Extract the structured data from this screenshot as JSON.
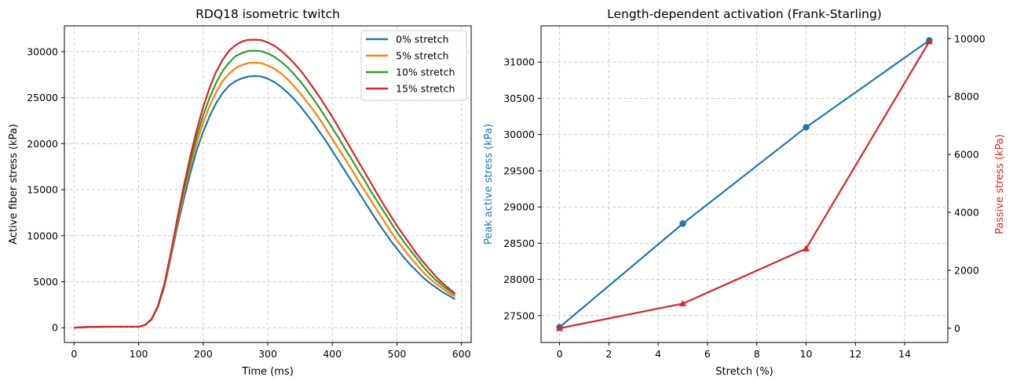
{
  "colors": {
    "blue": "#1f77b4",
    "orange": "#ff7f0e",
    "green": "#2ca02c",
    "red": "#d62728",
    "grid": "#cccccc"
  },
  "chart_data": [
    {
      "type": "line",
      "title": "RDQ18 isometric twitch",
      "xlabel": "Time (ms)",
      "ylabel": "Active fiber stress (kPa)",
      "xlim": [
        -15,
        615
      ],
      "ylim": [
        -1600,
        32800
      ],
      "xticks": [
        0,
        100,
        200,
        300,
        400,
        500,
        600
      ],
      "yticks": [
        0,
        5000,
        10000,
        15000,
        20000,
        25000,
        30000
      ],
      "grid": true,
      "legend": "top-right",
      "x": [
        0,
        10,
        20,
        30,
        40,
        50,
        60,
        70,
        80,
        90,
        100,
        110,
        120,
        130,
        140,
        150,
        160,
        170,
        180,
        190,
        200,
        210,
        220,
        230,
        240,
        250,
        260,
        270,
        280,
        290,
        300,
        310,
        320,
        330,
        340,
        350,
        360,
        370,
        380,
        390,
        400,
        410,
        420,
        430,
        440,
        450,
        460,
        470,
        480,
        490,
        500,
        510,
        520,
        530,
        540,
        550,
        560,
        570,
        580,
        590
      ],
      "series": [
        {
          "name": "0% stretch",
          "color": "#1f77b4",
          "values": [
            0,
            50,
            70,
            90,
            100,
            110,
            110,
            110,
            110,
            110,
            110,
            300,
            900,
            2300,
            4500,
            7700,
            11000,
            14000,
            16800,
            19300,
            21300,
            23000,
            24400,
            25500,
            26300,
            26800,
            27100,
            27300,
            27350,
            27300,
            27050,
            26700,
            26200,
            25600,
            24900,
            24100,
            23200,
            22300,
            21300,
            20300,
            19200,
            18100,
            17000,
            15900,
            14800,
            13700,
            12600,
            11500,
            10500,
            9500,
            8600,
            7700,
            6900,
            6200,
            5500,
            4900,
            4400,
            3900,
            3500,
            3100
          ]
        },
        {
          "name": "5% stretch",
          "color": "#ff7f0e",
          "values": [
            0,
            50,
            70,
            90,
            100,
            110,
            110,
            110,
            110,
            110,
            110,
            300,
            900,
            2300,
            4600,
            7900,
            11400,
            14600,
            17500,
            20100,
            22300,
            24100,
            25600,
            26800,
            27600,
            28200,
            28550,
            28770,
            28800,
            28750,
            28500,
            28150,
            27650,
            27050,
            26300,
            25500,
            24600,
            23700,
            22700,
            21600,
            20500,
            19400,
            18300,
            17200,
            16000,
            14900,
            13800,
            12700,
            11600,
            10500,
            9500,
            8600,
            7700,
            6900,
            6100,
            5400,
            4800,
            4300,
            3800,
            3400
          ]
        },
        {
          "name": "10% stretch",
          "color": "#2ca02c",
          "values": [
            0,
            50,
            70,
            90,
            100,
            110,
            110,
            110,
            110,
            110,
            110,
            300,
            900,
            2300,
            4700,
            8100,
            11700,
            15000,
            18000,
            20800,
            23100,
            25000,
            26600,
            27900,
            28800,
            29500,
            29850,
            30080,
            30100,
            30050,
            29800,
            29450,
            28950,
            28350,
            27600,
            26800,
            25900,
            24900,
            23900,
            22800,
            21700,
            20600,
            19400,
            18300,
            17100,
            16000,
            14800,
            13700,
            12600,
            11500,
            10400,
            9400,
            8500,
            7600,
            6700,
            5900,
            5200,
            4600,
            4100,
            3600
          ]
        },
        {
          "name": "15% stretch",
          "color": "#d62728",
          "values": [
            0,
            50,
            70,
            90,
            100,
            110,
            110,
            110,
            110,
            110,
            110,
            300,
            950,
            2400,
            4800,
            8200,
            11900,
            15400,
            18600,
            21500,
            24000,
            26100,
            27800,
            29100,
            30100,
            30700,
            31100,
            31280,
            31300,
            31250,
            31000,
            30650,
            30150,
            29500,
            28800,
            28000,
            27100,
            26100,
            25100,
            24000,
            22900,
            21700,
            20500,
            19300,
            18100,
            16900,
            15700,
            14500,
            13300,
            12200,
            11100,
            10100,
            9100,
            8100,
            7200,
            6400,
            5600,
            4900,
            4300,
            3700
          ]
        }
      ]
    },
    {
      "type": "line",
      "title": "Length-dependent activation (Frank-Starling)",
      "xlabel": "Stretch (%)",
      "ylabel_left": "Peak active stress (kPa)",
      "ylabel_right": "Passive stress (kPa)",
      "xlim": [
        -0.75,
        15.75
      ],
      "ylim_left": [
        27130,
        31500
      ],
      "ylim_right": [
        -490,
        10440
      ],
      "xticks": [
        0,
        2,
        4,
        6,
        8,
        10,
        12,
        14
      ],
      "yticks_left": [
        27500,
        28000,
        28500,
        29000,
        29500,
        30000,
        30500,
        31000
      ],
      "yticks_right": [
        0,
        2000,
        4000,
        6000,
        8000,
        10000
      ],
      "grid": true,
      "x": [
        0,
        5,
        10,
        15
      ],
      "series": [
        {
          "name": "Peak active stress (kPa)",
          "axis": "left",
          "color": "#1f77b4",
          "marker": "circle",
          "values": [
            27340,
            28770,
            30100,
            31300
          ]
        },
        {
          "name": "Passive stress (kPa)",
          "axis": "right",
          "color": "#d62728",
          "marker": "triangle",
          "values": [
            0,
            850,
            2750,
            9900
          ]
        }
      ]
    }
  ]
}
